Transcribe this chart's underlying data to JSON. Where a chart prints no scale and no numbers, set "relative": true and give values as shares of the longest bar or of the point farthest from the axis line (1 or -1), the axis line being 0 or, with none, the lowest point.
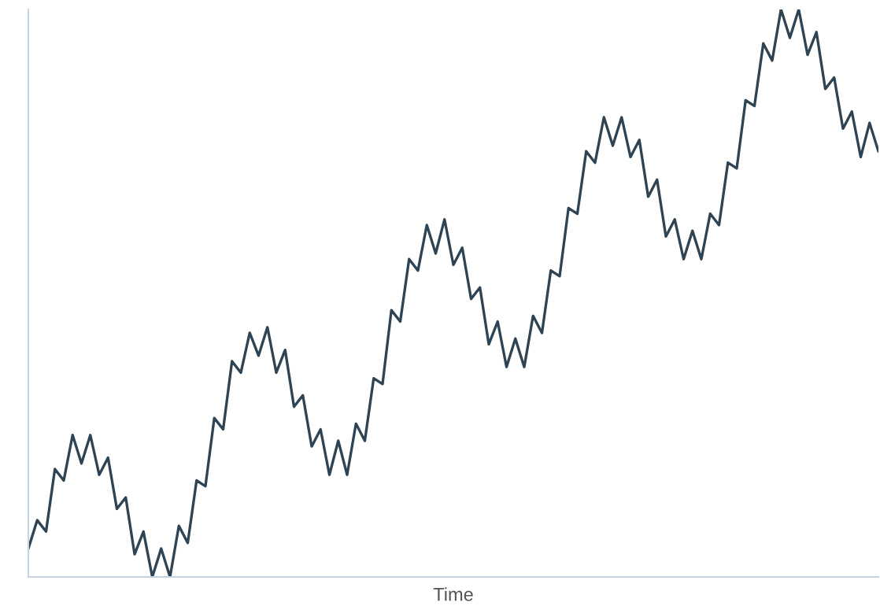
{
  "chart_data": {
    "type": "line",
    "relative": true,
    "xlabel": "Time",
    "grid": false,
    "marker": "none",
    "line_style": "solid",
    "categories": [
      null,
      null,
      null,
      null,
      null,
      null,
      null,
      null,
      null,
      null,
      null,
      null,
      null,
      null,
      null,
      null,
      null,
      null,
      null,
      null,
      null,
      null,
      null,
      null,
      null,
      null,
      null,
      null,
      null,
      null,
      null,
      null,
      null,
      null,
      null,
      null,
      null,
      null,
      null,
      null,
      null,
      null,
      null,
      null,
      null,
      null,
      null,
      null,
      null,
      null,
      null,
      null,
      null,
      null,
      null,
      null,
      null,
      null,
      null,
      null,
      null,
      null,
      null,
      null,
      null,
      null,
      null,
      null,
      null,
      null,
      null,
      null,
      null,
      null,
      null,
      null,
      null,
      null,
      null,
      null,
      null,
      null,
      null,
      null,
      null,
      null,
      null,
      null,
      null,
      null,
      null,
      null,
      null,
      null,
      null,
      null,
      null
    ],
    "series": [
      {
        "color": "#2e4454",
        "values": [
          0.05,
          0.1,
          0.08,
          0.19,
          0.17,
          0.25,
          0.2,
          0.25,
          0.18,
          0.21,
          0.12,
          0.14,
          0.04,
          0.08,
          0.0,
          0.05,
          0.0,
          0.09,
          0.06,
          0.17,
          0.16,
          0.28,
          0.26,
          0.38,
          0.36,
          0.43,
          0.39,
          0.44,
          0.36,
          0.4,
          0.3,
          0.32,
          0.23,
          0.26,
          0.18,
          0.24,
          0.18,
          0.27,
          0.24,
          0.35,
          0.34,
          0.47,
          0.45,
          0.56,
          0.54,
          0.62,
          0.57,
          0.63,
          0.55,
          0.58,
          0.49,
          0.51,
          0.41,
          0.45,
          0.37,
          0.42,
          0.37,
          0.46,
          0.43,
          0.54,
          0.53,
          0.65,
          0.64,
          0.75,
          0.73,
          0.81,
          0.76,
          0.81,
          0.74,
          0.77,
          0.67,
          0.7,
          0.6,
          0.63,
          0.56,
          0.61,
          0.56,
          0.64,
          0.62,
          0.73,
          0.72,
          0.84,
          0.83,
          0.94,
          0.91,
          1.0,
          0.95,
          1.0,
          0.92,
          0.96,
          0.86,
          0.88,
          0.79,
          0.82,
          0.74,
          0.8,
          0.75
        ]
      }
    ]
  }
}
